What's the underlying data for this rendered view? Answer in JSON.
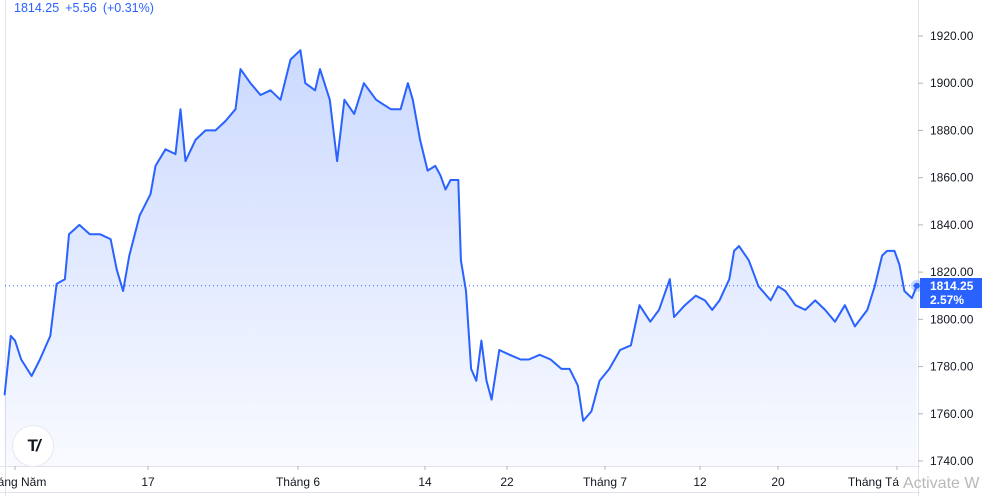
{
  "header": {
    "price": "1814.25",
    "change": "+5.56",
    "change_pct": "(+0.31%)"
  },
  "price_label": {
    "price": "1814.25",
    "pct": "2.57%"
  },
  "logo_text": "TV",
  "watermark": "Activate W",
  "colors": {
    "line": "#2962ff",
    "area_top": "#d3ddf8",
    "label_bg": "#2962ff"
  },
  "chart_data": {
    "type": "area",
    "title": "",
    "xlabel": "",
    "ylabel": "",
    "ylim": [
      1740,
      1920
    ],
    "y_ticks": [
      "1920.00",
      "1900.00",
      "1880.00",
      "1860.00",
      "1840.00",
      "1820.00",
      "1800.00",
      "1780.00",
      "1760.00",
      "1740.00"
    ],
    "x_ticks": [
      {
        "label": "Tháng Năm",
        "date": "05-01"
      },
      {
        "label": "17",
        "date": "05-17"
      },
      {
        "label": "Tháng 6",
        "date": "06-01"
      },
      {
        "label": "14",
        "date": "06-14"
      },
      {
        "label": "22",
        "date": "06-22"
      },
      {
        "label": "Tháng 7",
        "date": "07-01"
      },
      {
        "label": "12",
        "date": "07-12"
      },
      {
        "label": "20",
        "date": "07-20"
      },
      {
        "label": "Tháng Tá",
        "date": "08-01"
      }
    ],
    "last_value": 1814.25,
    "grid": false,
    "points": [
      [
        "04-29T18:00",
        1768
      ],
      [
        "04-30T12:00",
        1793
      ],
      [
        "05-01T00:00",
        1791
      ],
      [
        "05-01T18:00",
        1783
      ],
      [
        "05-03T00:00",
        1776
      ],
      [
        "05-04T00:00",
        1783
      ],
      [
        "05-05T06:00",
        1793
      ],
      [
        "05-06T00:00",
        1815
      ],
      [
        "05-07T00:00",
        1817
      ],
      [
        "05-07T12:00",
        1836
      ],
      [
        "05-08T18:00",
        1840
      ],
      [
        "05-10T00:00",
        1836
      ],
      [
        "05-11T06:00",
        1836
      ],
      [
        "05-12T12:00",
        1834
      ],
      [
        "05-13T06:00",
        1821
      ],
      [
        "05-14T00:00",
        1812
      ],
      [
        "05-14T18:00",
        1827
      ],
      [
        "05-16T00:00",
        1844
      ],
      [
        "05-17T06:00",
        1853
      ],
      [
        "05-17T18:00",
        1865
      ],
      [
        "05-18T18:00",
        1872
      ],
      [
        "05-19T18:00",
        1870
      ],
      [
        "05-20T06:00",
        1889
      ],
      [
        "05-20T18:00",
        1867
      ],
      [
        "05-21T18:00",
        1876
      ],
      [
        "05-22T18:00",
        1880
      ],
      [
        "05-23T18:00",
        1880
      ],
      [
        "05-24T18:00",
        1884
      ],
      [
        "05-25T18:00",
        1889
      ],
      [
        "05-26T06:00",
        1906
      ],
      [
        "05-27T06:00",
        1900
      ],
      [
        "05-28T06:00",
        1895
      ],
      [
        "05-29T06:00",
        1897
      ],
      [
        "05-30T06:00",
        1893
      ],
      [
        "05-31T06:00",
        1910
      ],
      [
        "06-01T06:00",
        1914
      ],
      [
        "06-01T18:00",
        1900
      ],
      [
        "06-02T18:00",
        1897
      ],
      [
        "06-03T06:00",
        1906
      ],
      [
        "06-04T06:00",
        1893
      ],
      [
        "06-05T00:00",
        1867
      ],
      [
        "06-05T18:00",
        1893
      ],
      [
        "06-06T18:00",
        1887
      ],
      [
        "06-07T18:00",
        1900
      ],
      [
        "06-09T00:00",
        1893
      ],
      [
        "06-10T12:00",
        1889
      ],
      [
        "06-11T12:00",
        1889
      ],
      [
        "06-12T06:00",
        1900
      ],
      [
        "06-12T18:00",
        1893
      ],
      [
        "06-13T12:00",
        1876
      ],
      [
        "06-14T06:00",
        1863
      ],
      [
        "06-15T00:00",
        1865
      ],
      [
        "06-15T12:00",
        1861
      ],
      [
        "06-16T00:00",
        1855
      ],
      [
        "06-16T12:00",
        1859
      ],
      [
        "06-17T06:00",
        1859
      ],
      [
        "06-17T12:00",
        1825
      ],
      [
        "06-18T00:00",
        1812
      ],
      [
        "06-18T12:00",
        1779
      ],
      [
        "06-19T00:00",
        1774
      ],
      [
        "06-19T12:00",
        1791
      ],
      [
        "06-20T00:00",
        1774
      ],
      [
        "06-20T12:00",
        1766
      ],
      [
        "06-21T06:00",
        1787
      ],
      [
        "06-22T06:00",
        1785
      ],
      [
        "06-23T06:00",
        1783
      ],
      [
        "06-24T00:00",
        1783
      ],
      [
        "06-25T00:00",
        1785
      ],
      [
        "06-26T00:00",
        1783
      ],
      [
        "06-27T00:00",
        1779
      ],
      [
        "06-27T18:00",
        1779
      ],
      [
        "06-28T12:00",
        1772
      ],
      [
        "06-29T00:00",
        1757
      ],
      [
        "06-29T18:00",
        1761
      ],
      [
        "06-30T12:00",
        1774
      ],
      [
        "07-01T12:00",
        1779
      ],
      [
        "07-02T18:00",
        1787
      ],
      [
        "07-04T00:00",
        1789
      ],
      [
        "07-05T00:00",
        1806
      ],
      [
        "07-06T06:00",
        1799
      ],
      [
        "07-07T06:00",
        1804
      ],
      [
        "07-08T12:00",
        1817
      ],
      [
        "07-09T00:00",
        1801
      ],
      [
        "07-10T06:00",
        1806
      ],
      [
        "07-11T12:00",
        1810
      ],
      [
        "07-12T12:00",
        1808
      ],
      [
        "07-13T06:00",
        1804
      ],
      [
        "07-14T00:00",
        1808
      ],
      [
        "07-15T00:00",
        1817
      ],
      [
        "07-15T12:00",
        1829
      ],
      [
        "07-16T00:00",
        1831
      ],
      [
        "07-17T00:00",
        1825
      ],
      [
        "07-18T00:00",
        1814
      ],
      [
        "07-19T06:00",
        1808
      ],
      [
        "07-20T00:00",
        1814
      ],
      [
        "07-20T18:00",
        1812
      ],
      [
        "07-21T18:00",
        1806
      ],
      [
        "07-22T18:00",
        1804
      ],
      [
        "07-23T18:00",
        1808
      ],
      [
        "07-24T18:00",
        1804
      ],
      [
        "07-25T18:00",
        1799
      ],
      [
        "07-26T18:00",
        1806
      ],
      [
        "07-27T18:00",
        1797
      ],
      [
        "07-29T00:00",
        1804
      ],
      [
        "07-29T18:00",
        1814
      ],
      [
        "07-30T12:00",
        1827
      ],
      [
        "07-31T00:00",
        1829
      ],
      [
        "07-31T18:00",
        1829
      ],
      [
        "08-01T06:00",
        1823
      ],
      [
        "08-01T18:00",
        1812
      ],
      [
        "08-02T12:00",
        1809
      ],
      [
        "08-03T00:00",
        1814.25
      ]
    ]
  }
}
